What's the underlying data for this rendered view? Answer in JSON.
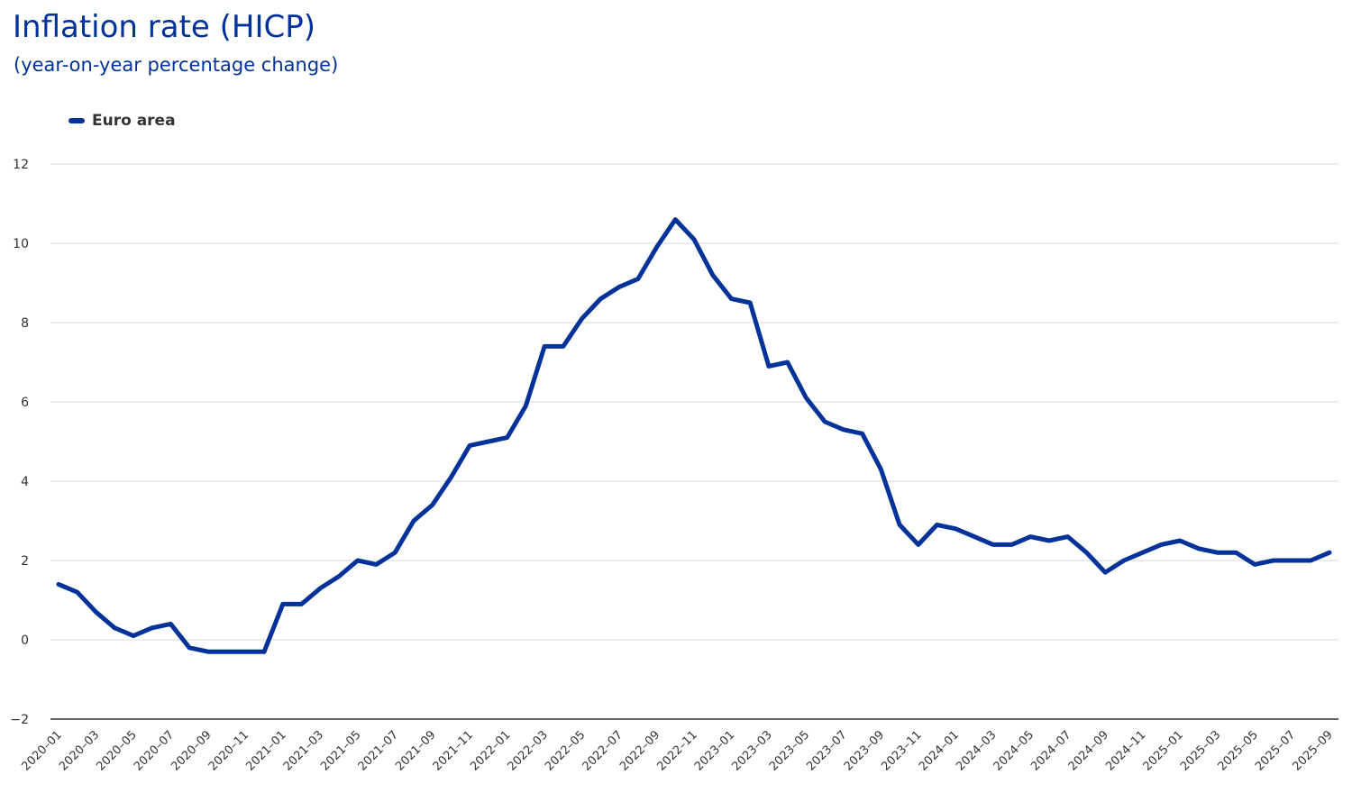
{
  "chart_data": {
    "type": "line",
    "title": "Inflation rate (HICP)",
    "subtitle": "(year-on-year percentage change)",
    "ylim": [
      -2,
      12
    ],
    "yticks": [
      -2,
      0,
      2,
      4,
      6,
      8,
      10,
      12
    ],
    "grid": true,
    "legend_position": "top-left",
    "x": [
      "2020-01",
      "2020-02",
      "2020-03",
      "2020-04",
      "2020-05",
      "2020-06",
      "2020-07",
      "2020-08",
      "2020-09",
      "2020-10",
      "2020-11",
      "2020-12",
      "2021-01",
      "2021-02",
      "2021-03",
      "2021-04",
      "2021-05",
      "2021-06",
      "2021-07",
      "2021-08",
      "2021-09",
      "2021-10",
      "2021-11",
      "2021-12",
      "2022-01",
      "2022-02",
      "2022-03",
      "2022-04",
      "2022-05",
      "2022-06",
      "2022-07",
      "2022-08",
      "2022-09",
      "2022-10",
      "2022-11",
      "2022-12",
      "2023-01",
      "2023-02",
      "2023-03",
      "2023-04",
      "2023-05",
      "2023-06",
      "2023-07",
      "2023-08",
      "2023-09",
      "2023-10",
      "2023-11",
      "2023-12",
      "2024-01",
      "2024-02",
      "2024-03",
      "2024-04",
      "2024-05",
      "2024-06",
      "2024-07",
      "2024-08",
      "2024-09",
      "2024-10",
      "2024-11",
      "2024-12",
      "2025-01",
      "2025-02",
      "2025-03",
      "2025-04",
      "2025-05",
      "2025-06",
      "2025-07",
      "2025-08",
      "2025-09"
    ],
    "x_tick_labels": [
      "2020-01",
      "2020-03",
      "2020-05",
      "2020-07",
      "2020-09",
      "2020-11",
      "2021-01",
      "2021-03",
      "2021-05",
      "2021-07",
      "2021-09",
      "2021-11",
      "2022-01",
      "2022-03",
      "2022-05",
      "2022-07",
      "2022-09",
      "2022-11",
      "2023-01",
      "2023-03",
      "2023-05",
      "2023-07",
      "2023-09",
      "2023-11",
      "2024-01",
      "2024-03",
      "2024-05",
      "2024-07",
      "2024-09",
      "2024-11",
      "2025-01",
      "2025-03",
      "2025-05",
      "2025-07",
      "2025-09"
    ],
    "series": [
      {
        "name": "Euro area",
        "color": "#003299",
        "values": [
          1.4,
          1.2,
          0.7,
          0.3,
          0.1,
          0.3,
          0.4,
          -0.2,
          -0.3,
          -0.3,
          -0.3,
          -0.3,
          0.9,
          0.9,
          1.3,
          1.6,
          2.0,
          1.9,
          2.2,
          3.0,
          3.4,
          4.1,
          4.9,
          5.0,
          5.1,
          5.9,
          7.4,
          7.4,
          8.1,
          8.6,
          8.9,
          9.1,
          9.9,
          10.6,
          10.1,
          9.2,
          8.6,
          8.5,
          6.9,
          7.0,
          6.1,
          5.5,
          5.3,
          5.2,
          4.3,
          2.9,
          2.4,
          2.9,
          2.8,
          2.6,
          2.4,
          2.4,
          2.6,
          2.5,
          2.6,
          2.2,
          1.7,
          2.0,
          2.2,
          2.4,
          2.5,
          2.3,
          2.2,
          2.2,
          1.9,
          2.0,
          2.0,
          2.0,
          2.2
        ]
      }
    ]
  }
}
